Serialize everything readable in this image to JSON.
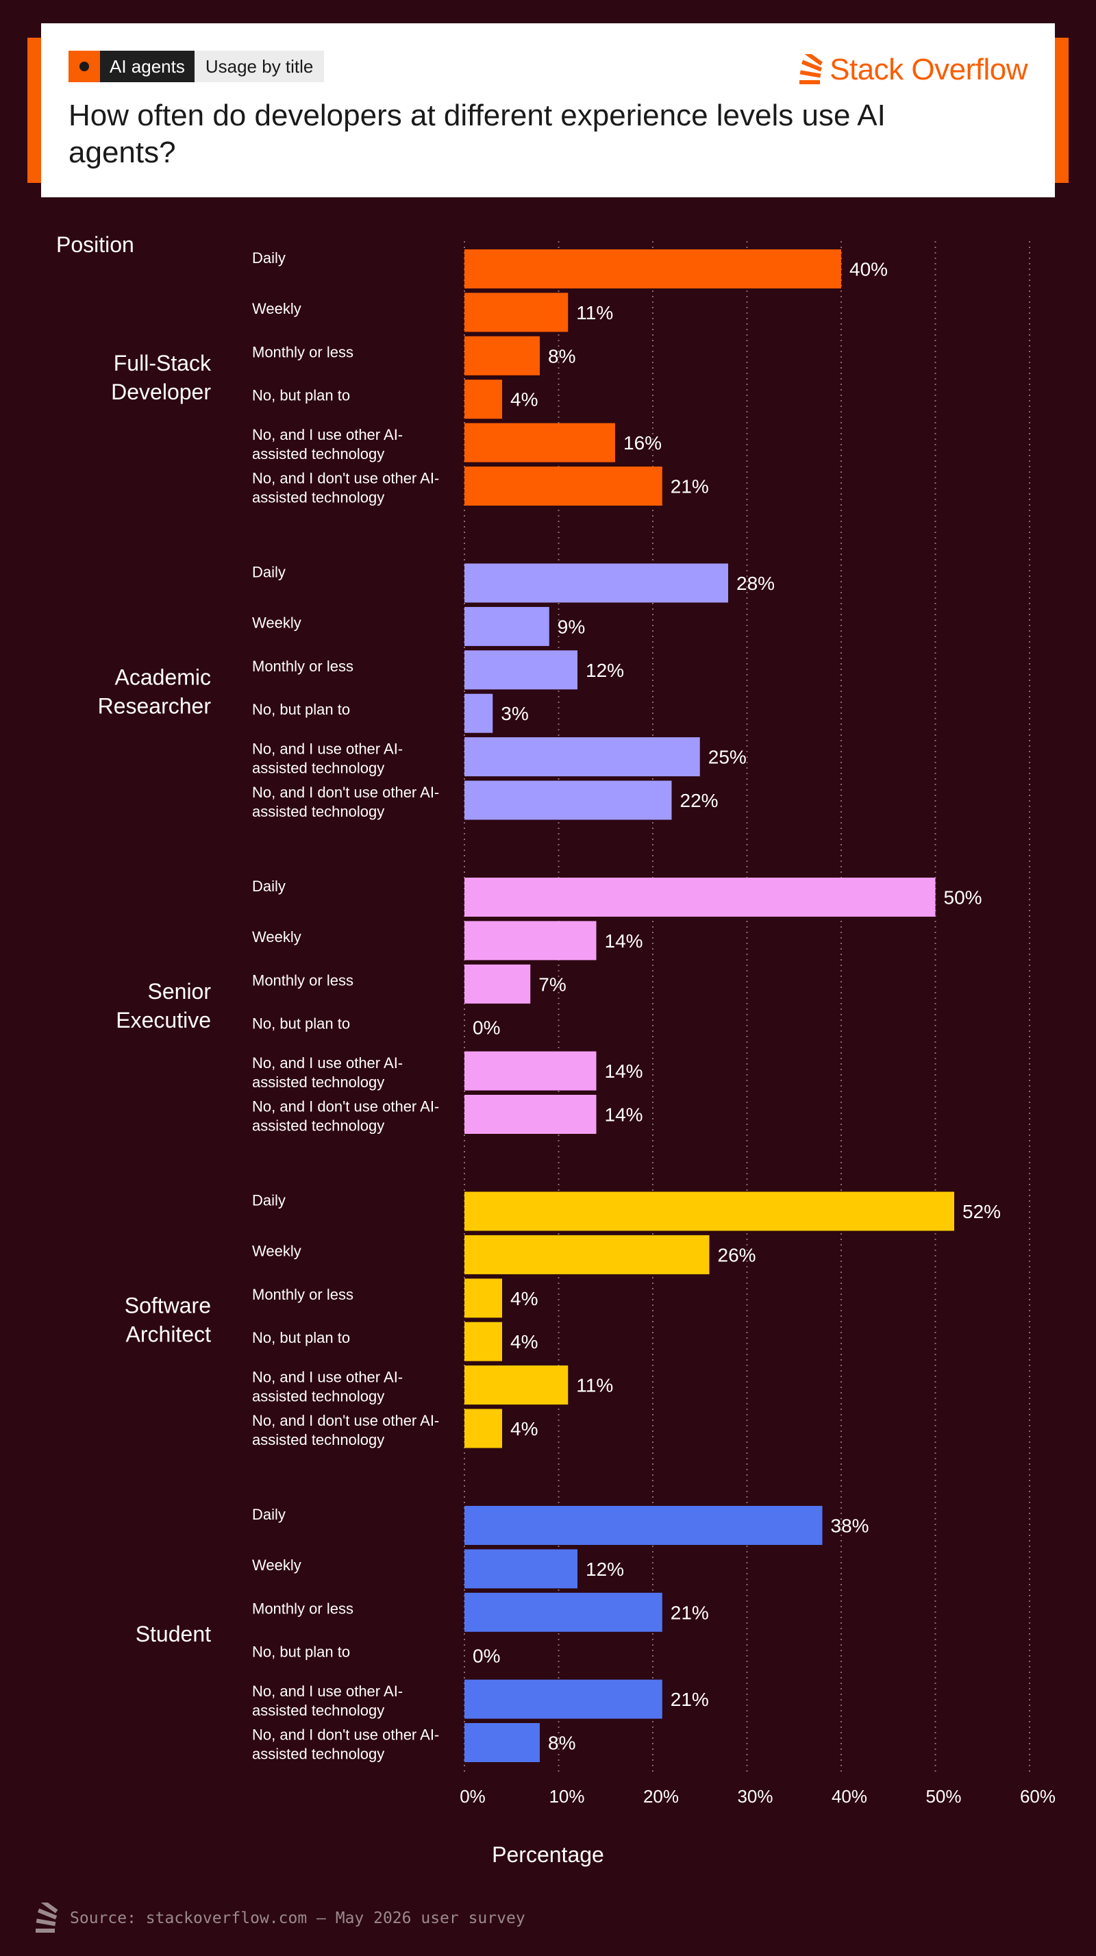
{
  "header": {
    "tag_primary": "AI agents",
    "tag_secondary": "Usage by title",
    "brand": "Stack Overflow",
    "title": "How often do developers at different experience levels use AI agents?"
  },
  "footer": {
    "source": "Source: stackoverflow.com – May 2026 user survey"
  },
  "colors": {
    "background": "#2d0711",
    "accent": "#f95e00",
    "full_stack": "#ff5e00",
    "academic": "#a29bff",
    "senior_exec": "#f49ff5",
    "architect": "#ffcb00",
    "student": "#5175f0"
  },
  "chart_data": {
    "type": "bar",
    "orientation": "horizontal",
    "title": "How often do developers at different experience levels use AI agents?",
    "group_label": "Position",
    "xlabel": "Percentage",
    "xlim": [
      0,
      60
    ],
    "x_ticks": [
      "0%",
      "10%",
      "20%",
      "30%",
      "40%",
      "50%",
      "60%"
    ],
    "grid": "vertical dotted",
    "categories": [
      "Daily",
      "Weekly",
      "Monthly or less",
      "No, but plan to",
      "No, and I use other AI-assisted technology",
      "No, and I don't use other AI-assisted technology"
    ],
    "category_lines": [
      [
        "Daily"
      ],
      [
        "Weekly"
      ],
      [
        "Monthly or less"
      ],
      [
        "No, but plan to"
      ],
      [
        "No, and I use other AI-",
        "assisted technology"
      ],
      [
        "No, and I don't use other AI-",
        "assisted technology"
      ]
    ],
    "series": [
      {
        "name": "Full-Stack Developer",
        "lines": [
          "Full-Stack",
          "Developer"
        ],
        "color": "#ff5e00",
        "values": [
          40,
          11,
          8,
          4,
          16,
          21
        ]
      },
      {
        "name": "Academic Researcher",
        "lines": [
          "Academic",
          "Researcher"
        ],
        "color": "#a29bff",
        "values": [
          28,
          9,
          12,
          3,
          25,
          22
        ]
      },
      {
        "name": "Senior Executive",
        "lines": [
          "Senior",
          "Executive"
        ],
        "color": "#f49ff5",
        "values": [
          50,
          14,
          7,
          0,
          14,
          14
        ]
      },
      {
        "name": "Software Architect",
        "lines": [
          "Software",
          "Architect"
        ],
        "color": "#ffcb00",
        "values": [
          52,
          26,
          4,
          4,
          11,
          4
        ]
      },
      {
        "name": "Student",
        "lines": [
          "Student"
        ],
        "color": "#5175f0",
        "values": [
          38,
          12,
          21,
          0,
          21,
          8
        ]
      }
    ]
  }
}
